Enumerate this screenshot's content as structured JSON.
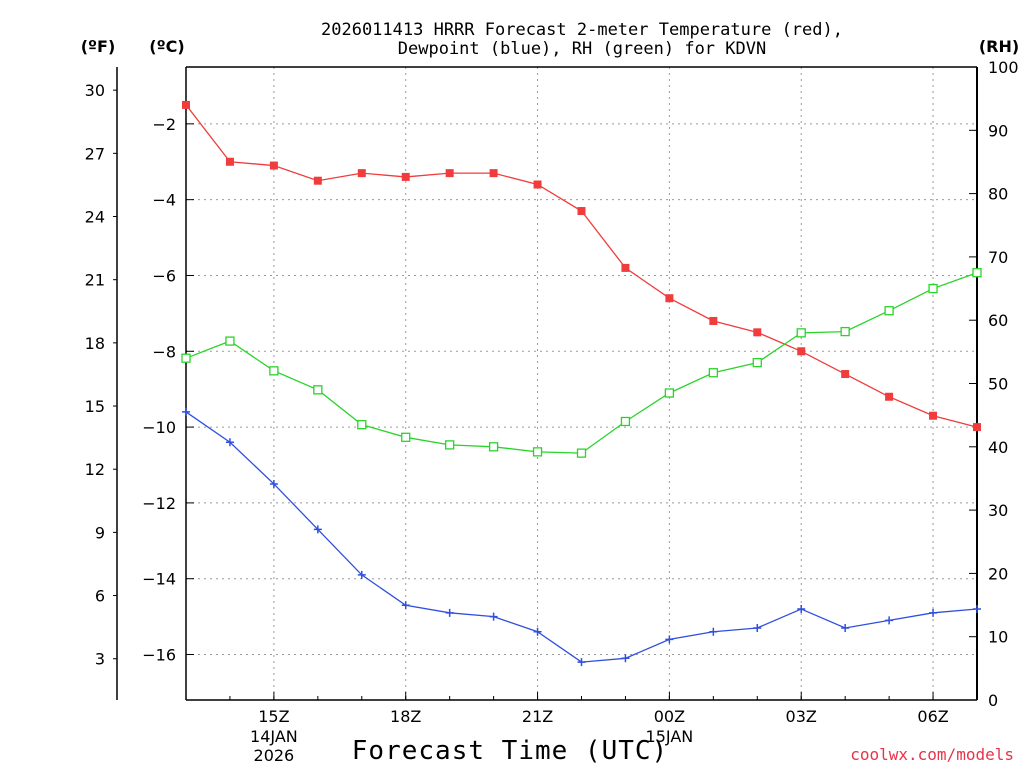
{
  "chart_data": {
    "type": "line",
    "title": [
      "2026011413 HRRR Forecast 2-meter Temperature (red),",
      "Dewpoint (blue), RH (green) for KDVN"
    ],
    "xlabel": "Forecast Time (UTC)",
    "credit": "coolwx.com/models",
    "x": [
      13,
      14,
      15,
      16,
      17,
      18,
      19,
      20,
      21,
      22,
      23,
      24,
      25,
      26,
      27,
      28,
      29,
      30,
      31
    ],
    "xlim": [
      13,
      31
    ],
    "x_ticks": [
      {
        "x": 15,
        "label": "15Z",
        "sub": [
          "14JAN",
          "2026"
        ]
      },
      {
        "x": 18,
        "label": "18Z",
        "sub": []
      },
      {
        "x": 21,
        "label": "21Z",
        "sub": []
      },
      {
        "x": 24,
        "label": "00Z",
        "sub": [
          "15JAN"
        ]
      },
      {
        "x": 27,
        "label": "03Z",
        "sub": []
      },
      {
        "x": 30,
        "label": "06Z",
        "sub": []
      }
    ],
    "y_celsius": {
      "unit": "(ºC)",
      "range": [
        -17.2,
        -0.5
      ],
      "ticks": [
        -2,
        -4,
        -6,
        -8,
        -10,
        -12,
        -14,
        -16
      ]
    },
    "y_fahrenheit": {
      "unit": "(ºF)",
      "ticks": [
        30,
        27,
        24,
        21,
        18,
        15,
        12,
        9,
        6,
        3
      ]
    },
    "y_rh": {
      "unit": "(RH)",
      "range": [
        0,
        100
      ],
      "ticks": [
        100,
        90,
        80,
        70,
        60,
        50,
        40,
        30,
        20,
        10,
        0
      ]
    },
    "series": [
      {
        "name": "Temperature",
        "axis": "celsius",
        "color": "#f03c3c",
        "marker": "filled-square",
        "values": [
          -1.5,
          -3.0,
          -3.1,
          -3.5,
          -3.3,
          -3.4,
          -3.3,
          -3.3,
          -3.6,
          -4.3,
          -5.8,
          -6.6,
          -7.2,
          -7.5,
          -8.0,
          -8.6,
          -9.2,
          -9.7,
          -10.0
        ]
      },
      {
        "name": "Dewpoint",
        "axis": "celsius",
        "color": "#2f4fe0",
        "marker": "plus",
        "values": [
          -9.6,
          -10.4,
          -11.5,
          -12.7,
          -13.9,
          -14.7,
          -14.9,
          -15.0,
          -15.4,
          -16.2,
          -16.1,
          -15.6,
          -15.4,
          -15.3,
          -14.8,
          -15.3,
          -15.1,
          -14.9,
          -14.8
        ]
      },
      {
        "name": "RH",
        "axis": "rh",
        "color": "#29d429",
        "marker": "open-square",
        "values": [
          54,
          56.7,
          52,
          49,
          43.5,
          41.5,
          40.3,
          40,
          39.2,
          39,
          44,
          48.5,
          51.7,
          53.3,
          58,
          58.2,
          61.5,
          65,
          67.5
        ]
      }
    ]
  }
}
